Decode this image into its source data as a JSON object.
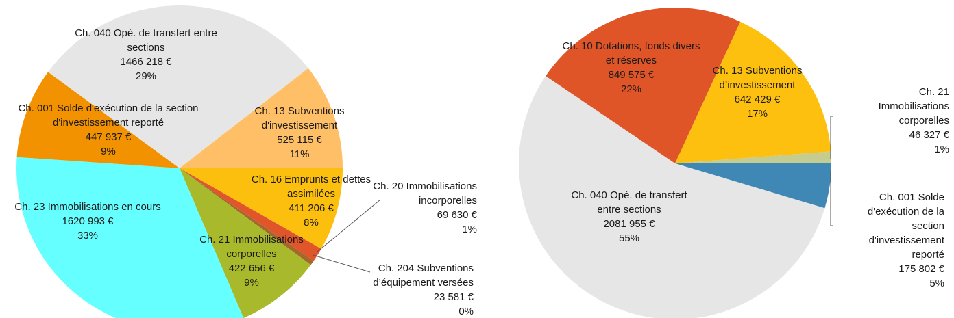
{
  "chart_data": [
    {
      "type": "pie",
      "categories": [
        "Ch. 16 Emprunts et dettes assimilées",
        "Ch. 20 Immobilisations incorporelles",
        "Ch. 204 Subventions d’équipement versées",
        "Ch. 21 Immobilisations corporelles",
        "Ch. 23 Immobilisations en cours",
        "Ch. 001 Solde d'exécution de la section d'investissement reporté",
        "Ch. 040 Opé. de transfert entre sections",
        "Ch. 13 Subventions d'investissement"
      ],
      "values": [
        411206,
        69630,
        23581,
        422656,
        1620993,
        447937,
        1466218,
        525115
      ],
      "value_labels": [
        "411 206 €",
        "69 630 €",
        "23 581 €",
        "422 656 €",
        "1620 993 €",
        "447 937 €",
        "1466 218 €",
        "525 115 €"
      ],
      "percentages": [
        8,
        1,
        0,
        9,
        33,
        9,
        29,
        11
      ],
      "percentage_labels": [
        "8%",
        "1%",
        "0%",
        "9%",
        "33%",
        "9%",
        "29%",
        "11%"
      ],
      "colors": [
        "#fdbf0d",
        "#e0562a",
        "#a4672c",
        "#a8ba2b",
        "#66ffff",
        "#f39200",
        "#e6e6e6",
        "#ffbf66"
      ]
    },
    {
      "type": "pie",
      "categories": [
        "Ch. 001 Solde d'exécution de la section d'investissement reporté",
        "Ch. 040 Opé. de transfert entre sections",
        "Ch. 10 Dotations, fonds divers et réserves",
        "Ch. 13 Subventions d’investissement",
        "Ch. 21 Immobilisations corporelles"
      ],
      "values": [
        175802,
        2081955,
        849575,
        642429,
        46327
      ],
      "value_labels": [
        "175 802 €",
        "2081 955 €",
        "849 575 €",
        "642 429 €",
        "46 327 €"
      ],
      "percentages": [
        5,
        55,
        22,
        17,
        1
      ],
      "percentage_labels": [
        "5%",
        "55%",
        "22%",
        "17%",
        "1%"
      ],
      "colors": [
        "#3f88b6",
        "#e6e6e6",
        "#e05528",
        "#fdc00f",
        "#c5cc8f"
      ]
    }
  ]
}
